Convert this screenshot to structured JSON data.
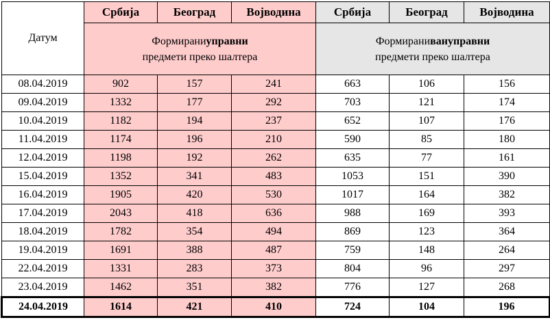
{
  "header": {
    "date_label": "Датум",
    "col_labels": [
      "Србија",
      "Београд",
      "Војводина",
      "Србија",
      "Београд",
      "Војводина"
    ],
    "group_left": {
      "prefix": "Формирани ",
      "bold": "управни",
      "suffix": " предмети преко шалтера"
    },
    "group_right": {
      "prefix": "Формирани ",
      "bold": "вануправни",
      "suffix": " предмети преко шалтера"
    }
  },
  "colors": {
    "pink": "#ffcccc",
    "grey": "#e7e6e6"
  },
  "rows": [
    {
      "date": "08.04.2019",
      "vals": [
        "902",
        "157",
        "241",
        "663",
        "106",
        "156"
      ]
    },
    {
      "date": "09.04.2019",
      "vals": [
        "1332",
        "177",
        "292",
        "703",
        "121",
        "174"
      ]
    },
    {
      "date": "10.04.2019",
      "vals": [
        "1182",
        "194",
        "237",
        "652",
        "107",
        "176"
      ]
    },
    {
      "date": "11.04.2019",
      "vals": [
        "1174",
        "196",
        "210",
        "590",
        "85",
        "180"
      ]
    },
    {
      "date": "12.04.2019",
      "vals": [
        "1198",
        "192",
        "262",
        "635",
        "77",
        "161"
      ]
    },
    {
      "date": "15.04.2019",
      "vals": [
        "1352",
        "341",
        "483",
        "1053",
        "151",
        "390"
      ]
    },
    {
      "date": "16.04.2019",
      "vals": [
        "1905",
        "420",
        "530",
        "1017",
        "164",
        "382"
      ]
    },
    {
      "date": "17.04.2019",
      "vals": [
        "2043",
        "418",
        "636",
        "988",
        "169",
        "393"
      ]
    },
    {
      "date": "18.04.2019",
      "vals": [
        "1782",
        "354",
        "494",
        "869",
        "123",
        "364"
      ]
    },
    {
      "date": "19.04.2019",
      "vals": [
        "1691",
        "388",
        "487",
        "759",
        "148",
        "264"
      ]
    },
    {
      "date": "22.04.2019",
      "vals": [
        "1331",
        "283",
        "373",
        "804",
        "96",
        "297"
      ]
    },
    {
      "date": "23.04.2019",
      "vals": [
        "1462",
        "351",
        "382",
        "776",
        "127",
        "268"
      ]
    },
    {
      "date": "24.04.2019",
      "vals": [
        "1614",
        "421",
        "410",
        "724",
        "104",
        "196"
      ]
    }
  ]
}
